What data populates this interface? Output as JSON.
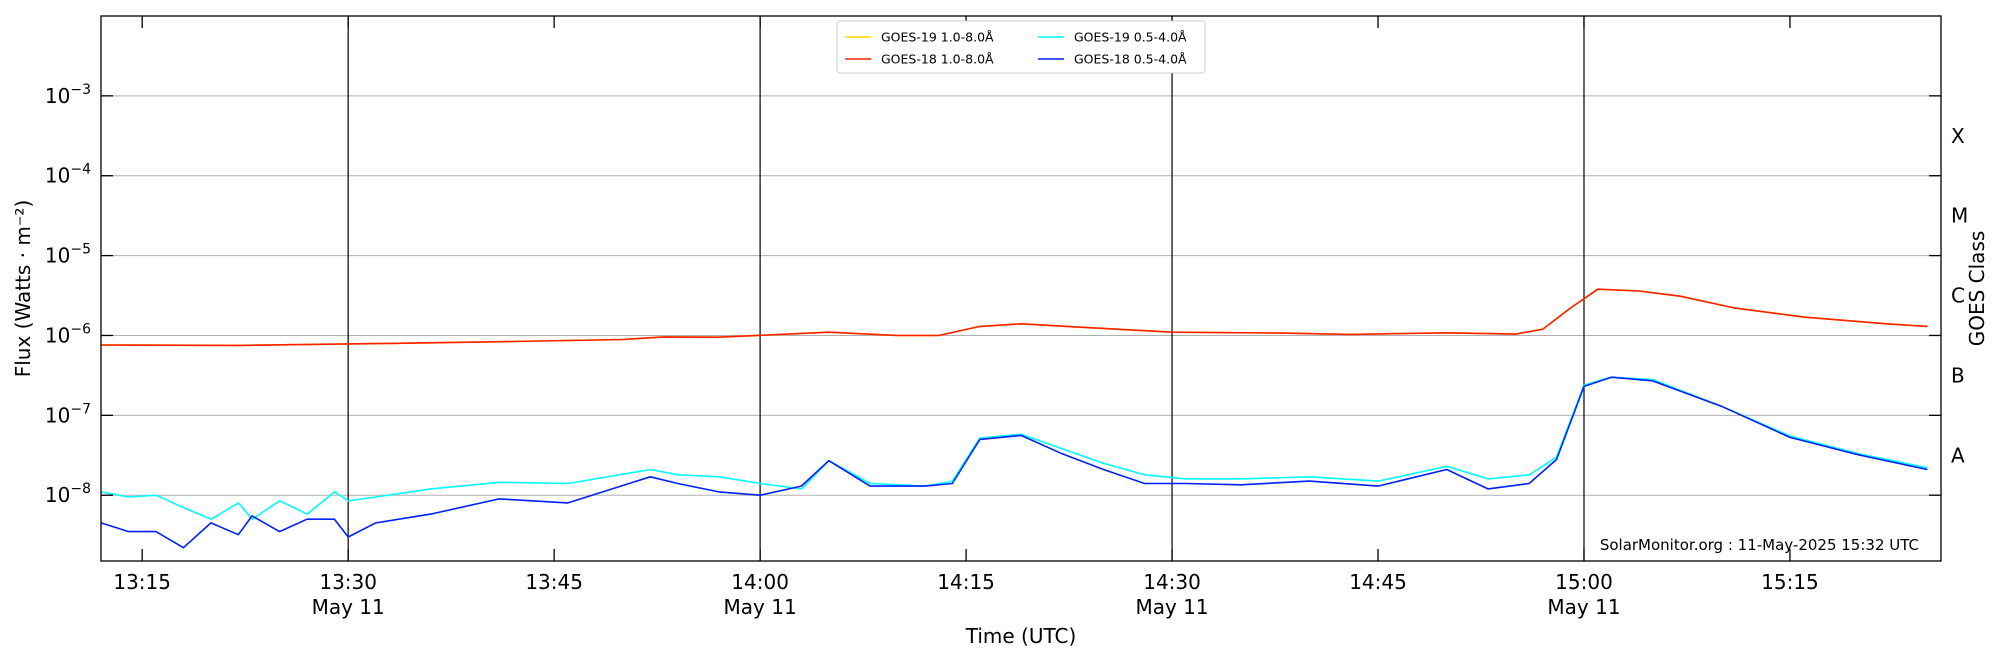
{
  "chart_data": {
    "type": "line",
    "xlabel": "Time (UTC)",
    "ylabel": "Flux (Watts · m⁻²)",
    "ylabel_right": "GOES Class",
    "y_scale": "log",
    "ylim": [
      1.5e-09,
      0.01
    ],
    "xlim": [
      "13:12",
      "15:26"
    ],
    "x_ticks": [
      {
        "time": "13:15",
        "label": "13:15",
        "date": ""
      },
      {
        "time": "13:30",
        "label": "13:30",
        "date": "May 11"
      },
      {
        "time": "13:45",
        "label": "13:45",
        "date": ""
      },
      {
        "time": "14:00",
        "label": "14:00",
        "date": "May 11"
      },
      {
        "time": "14:15",
        "label": "14:15",
        "date": ""
      },
      {
        "time": "14:30",
        "label": "14:30",
        "date": "May 11"
      },
      {
        "time": "14:45",
        "label": "14:45",
        "date": ""
      },
      {
        "time": "15:00",
        "label": "15:00",
        "date": "May 11"
      },
      {
        "time": "15:15",
        "label": "15:15",
        "date": ""
      }
    ],
    "y_ticks": [
      {
        "value": 1e-08,
        "base": "10",
        "exp": "−8"
      },
      {
        "value": 1e-07,
        "base": "10",
        "exp": "−7"
      },
      {
        "value": 1e-06,
        "base": "10",
        "exp": "−6"
      },
      {
        "value": 1e-05,
        "base": "10",
        "exp": "−5"
      },
      {
        "value": 0.0001,
        "base": "10",
        "exp": "−4"
      },
      {
        "value": 0.001,
        "base": "10",
        "exp": "−3"
      }
    ],
    "goes_classes": [
      {
        "label": "A",
        "value": 3.16e-08
      },
      {
        "label": "B",
        "value": 3.16e-07
      },
      {
        "label": "C",
        "value": 3.16e-06
      },
      {
        "label": "M",
        "value": 3.16e-05
      },
      {
        "label": "X",
        "value": 0.000316
      }
    ],
    "vlines": [
      "13:30",
      "14:00",
      "14:30",
      "15:00"
    ],
    "grid": "horizontal",
    "legend_position": "top-center",
    "annotation": "SolarMonitor.org : 11-May-2025 15:32 UTC",
    "series": [
      {
        "name": "GOES-19 1.0-8.0Å",
        "color": "#ffd700",
        "x": [
          "13:12",
          "13:22",
          "13:32",
          "13:42",
          "13:50",
          "13:53",
          "13:57",
          "14:05",
          "14:10",
          "14:13",
          "14:16",
          "14:19",
          "14:23",
          "14:30",
          "14:38",
          "14:43",
          "14:50",
          "14:55",
          "14:57",
          "14:59",
          "15:01",
          "15:04",
          "15:07",
          "15:11",
          "15:16",
          "15:22",
          "15:25"
        ],
        "y": [
          7.6e-07,
          7.5e-07,
          7.9e-07,
          8.4e-07,
          8.9e-07,
          9.6e-07,
          9.5e-07,
          1.1e-06,
          1e-06,
          1e-06,
          1.3e-06,
          1.4e-06,
          1.28e-06,
          1.1e-06,
          1.07e-06,
          1.03e-06,
          1.08e-06,
          1.04e-06,
          1.2e-06,
          2.2e-06,
          3.8e-06,
          3.6e-06,
          3.1e-06,
          2.2e-06,
          1.7e-06,
          1.4e-06,
          1.3e-06
        ]
      },
      {
        "name": "GOES-18 1.0-8.0Å",
        "color": "#ff2000",
        "x": [
          "13:12",
          "13:22",
          "13:32",
          "13:42",
          "13:50",
          "13:53",
          "13:57",
          "14:05",
          "14:10",
          "14:13",
          "14:16",
          "14:19",
          "14:23",
          "14:30",
          "14:38",
          "14:43",
          "14:50",
          "14:55",
          "14:57",
          "14:59",
          "15:01",
          "15:04",
          "15:07",
          "15:11",
          "15:16",
          "15:22",
          "15:25"
        ],
        "y": [
          7.6e-07,
          7.5e-07,
          7.9e-07,
          8.4e-07,
          8.9e-07,
          9.6e-07,
          9.5e-07,
          1.1e-06,
          1e-06,
          1e-06,
          1.3e-06,
          1.4e-06,
          1.28e-06,
          1.1e-06,
          1.07e-06,
          1.03e-06,
          1.08e-06,
          1.04e-06,
          1.2e-06,
          2.2e-06,
          3.8e-06,
          3.6e-06,
          3.1e-06,
          2.2e-06,
          1.7e-06,
          1.4e-06,
          1.3e-06
        ]
      },
      {
        "name": "GOES-19 0.5-4.0Å",
        "color": "#00ffff",
        "x": [
          "13:12",
          "13:14",
          "13:16",
          "13:18",
          "13:20",
          "13:22",
          "13:23",
          "13:25",
          "13:27",
          "13:29",
          "13:30",
          "13:32",
          "13:36",
          "13:41",
          "13:46",
          "13:52",
          "13:54",
          "13:57",
          "14:00",
          "14:03",
          "14:05",
          "14:08",
          "14:12",
          "14:14",
          "14:16",
          "14:19",
          "14:22",
          "14:25",
          "14:28",
          "14:31",
          "14:35",
          "14:40",
          "14:45",
          "14:50",
          "14:53",
          "14:56",
          "14:58",
          "15:00",
          "15:02",
          "15:05",
          "15:10",
          "15:15",
          "15:20",
          "15:25"
        ],
        "y": [
          1.1e-08,
          9.5e-09,
          1e-08,
          7e-09,
          5e-09,
          8e-09,
          5e-09,
          8.5e-09,
          5.8e-09,
          1.1e-08,
          8.5e-09,
          9.5e-09,
          1.2e-08,
          1.45e-08,
          1.4e-08,
          2.1e-08,
          1.8e-08,
          1.7e-08,
          1.4e-08,
          1.2e-08,
          2.7e-08,
          1.4e-08,
          1.3e-08,
          1.5e-08,
          5.2e-08,
          5.8e-08,
          3.8e-08,
          2.5e-08,
          1.8e-08,
          1.6e-08,
          1.6e-08,
          1.7e-08,
          1.5e-08,
          2.3e-08,
          1.6e-08,
          1.8e-08,
          3e-08,
          2.4e-07,
          3e-07,
          2.8e-07,
          1.3e-07,
          5.5e-08,
          3.3e-08,
          2.2e-08
        ]
      },
      {
        "name": "GOES-18 0.5-4.0Å",
        "color": "#0020ff",
        "x": [
          "13:12",
          "13:14",
          "13:16",
          "13:18",
          "13:20",
          "13:22",
          "13:23",
          "13:25",
          "13:27",
          "13:29",
          "13:30",
          "13:32",
          "13:36",
          "13:41",
          "13:46",
          "13:52",
          "13:54",
          "13:57",
          "14:00",
          "14:03",
          "14:05",
          "14:08",
          "14:12",
          "14:14",
          "14:16",
          "14:19",
          "14:22",
          "14:25",
          "14:28",
          "14:31",
          "14:35",
          "14:40",
          "14:45",
          "14:50",
          "14:53",
          "14:56",
          "14:58",
          "15:00",
          "15:02",
          "15:05",
          "15:10",
          "15:15",
          "15:20",
          "15:25"
        ],
        "y": [
          4.5e-09,
          3.5e-09,
          3.5e-09,
          2.2e-09,
          4.5e-09,
          3.2e-09,
          5.5e-09,
          3.5e-09,
          5e-09,
          5e-09,
          3e-09,
          4.5e-09,
          5.8e-09,
          9e-09,
          8e-09,
          1.7e-08,
          1.4e-08,
          1.1e-08,
          1e-08,
          1.3e-08,
          2.7e-08,
          1.3e-08,
          1.3e-08,
          1.4e-08,
          5e-08,
          5.6e-08,
          3.3e-08,
          2.1e-08,
          1.4e-08,
          1.4e-08,
          1.35e-08,
          1.5e-08,
          1.3e-08,
          2.1e-08,
          1.2e-08,
          1.4e-08,
          2.8e-08,
          2.3e-07,
          3e-07,
          2.7e-07,
          1.3e-07,
          5.3e-08,
          3.2e-08,
          2.1e-08
        ]
      }
    ]
  }
}
